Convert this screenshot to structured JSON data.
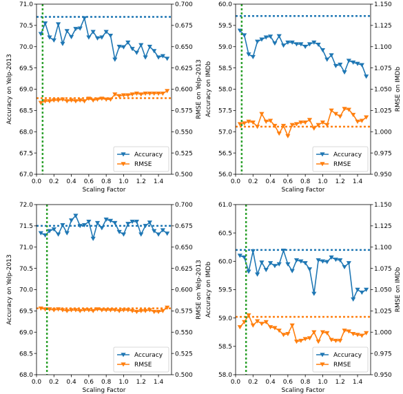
{
  "colors": {
    "accuracy": "#1f77b4",
    "rmse": "#ff7f0e",
    "marker_line": "#2ca02c"
  },
  "chart_data": [
    {
      "type": "line",
      "xlabel": "Scaling Factor",
      "ylabel_left": "Accuracy on Yelp-2013",
      "ylabel_right": "RMSE on Yelp-2013",
      "xlim": [
        0.0,
        1.55
      ],
      "ylim_left": [
        67.0,
        71.0
      ],
      "ylim_right": [
        0.5,
        0.7
      ],
      "xticks": [
        "0.0",
        "0.2",
        "0.4",
        "0.6",
        "0.8",
        "1.0",
        "1.2",
        "1.4"
      ],
      "yticks_left": [
        "67.0",
        "67.5",
        "68.0",
        "68.5",
        "69.0",
        "69.5",
        "70.0",
        "70.5",
        "71.0"
      ],
      "yticks_right": [
        "0.500",
        "0.525",
        "0.550",
        "0.575",
        "0.600",
        "0.625",
        "0.650",
        "0.675",
        "0.700"
      ],
      "legend": [
        "Accuracy",
        "RMSE"
      ],
      "legend_position": "lower right",
      "vertical_line_x": 0.07,
      "accuracy_baseline": 70.7,
      "rmse_baseline": 0.5895,
      "x": [
        0.05,
        0.1,
        0.15,
        0.2,
        0.25,
        0.3,
        0.35,
        0.4,
        0.45,
        0.5,
        0.55,
        0.6,
        0.65,
        0.7,
        0.75,
        0.8,
        0.85,
        0.9,
        0.95,
        1.0,
        1.05,
        1.1,
        1.15,
        1.2,
        1.25,
        1.3,
        1.35,
        1.4,
        1.45,
        1.5
      ],
      "series": [
        {
          "name": "Accuracy",
          "axis": "left",
          "marker": "triangle-down",
          "values": [
            70.3,
            70.55,
            70.22,
            70.15,
            70.53,
            70.07,
            70.37,
            70.23,
            70.42,
            70.43,
            70.67,
            70.22,
            70.35,
            70.2,
            70.22,
            70.35,
            70.26,
            69.7,
            70.0,
            69.99,
            70.1,
            69.95,
            69.86,
            70.04,
            69.75,
            70.0,
            69.9,
            69.75,
            69.78,
            69.72
          ]
        },
        {
          "name": "RMSE",
          "axis": "right",
          "marker": "triangle-down",
          "values": [
            0.584,
            0.586,
            0.586,
            0.587,
            0.587,
            0.588,
            0.586,
            0.587,
            0.586,
            0.587,
            0.586,
            0.589,
            0.587,
            0.588,
            0.589,
            0.588,
            0.588,
            0.594,
            0.592,
            0.593,
            0.593,
            0.594,
            0.595,
            0.594,
            0.595,
            0.595,
            0.595,
            0.595,
            0.595,
            0.598
          ]
        }
      ]
    },
    {
      "type": "line",
      "xlabel": "Scaling Factor",
      "ylabel_left": "Accuracy on IMDb",
      "ylabel_right": "RMSE on IMDb",
      "xlim": [
        0.0,
        1.55
      ],
      "ylim_left": [
        56.0,
        60.0
      ],
      "ylim_right": [
        0.95,
        1.15
      ],
      "xticks": [
        "0.0",
        "0.2",
        "0.4",
        "0.6",
        "0.8",
        "1.0",
        "1.2",
        "1.4"
      ],
      "yticks_left": [
        "56.0",
        "56.5",
        "57.0",
        "57.5",
        "58.0",
        "58.5",
        "59.0",
        "59.5",
        "60.0"
      ],
      "yticks_right": [
        "0.950",
        "0.975",
        "1.000",
        "1.025",
        "1.050",
        "1.075",
        "1.100",
        "1.125",
        "1.150"
      ],
      "legend": [
        "Accuracy",
        "RMSE"
      ],
      "legend_position": "lower right",
      "vertical_line_x": 0.07,
      "accuracy_baseline": 59.72,
      "rmse_baseline": 1.006,
      "x": [
        0.05,
        0.1,
        0.15,
        0.2,
        0.25,
        0.3,
        0.35,
        0.4,
        0.45,
        0.5,
        0.55,
        0.6,
        0.65,
        0.7,
        0.75,
        0.8,
        0.85,
        0.9,
        0.95,
        1.0,
        1.05,
        1.1,
        1.15,
        1.2,
        1.25,
        1.3,
        1.35,
        1.4,
        1.45,
        1.5
      ],
      "series": [
        {
          "name": "Accuracy",
          "axis": "left",
          "marker": "triangle-down",
          "values": [
            59.38,
            59.27,
            58.82,
            58.76,
            59.12,
            59.17,
            59.22,
            59.24,
            59.08,
            59.25,
            59.03,
            59.1,
            59.1,
            59.06,
            59.06,
            59.0,
            59.06,
            59.1,
            59.05,
            58.92,
            58.7,
            58.8,
            58.55,
            58.58,
            58.4,
            58.67,
            58.63,
            58.6,
            58.57,
            58.3
          ]
        },
        {
          "name": "RMSE",
          "axis": "right",
          "marker": "triangle-down",
          "values": [
            1.009,
            1.01,
            1.012,
            1.011,
            1.006,
            1.021,
            1.012,
            1.013,
            1.007,
            0.998,
            1.007,
            0.995,
            1.008,
            1.009,
            1.011,
            1.011,
            1.014,
            1.004,
            1.008,
            1.011,
            1.008,
            1.025,
            1.021,
            1.018,
            1.027,
            1.026,
            1.02,
            1.012,
            1.013,
            1.017
          ]
        }
      ]
    },
    {
      "type": "line",
      "xlabel": "Scaling Factor",
      "ylabel_left": "Accuracy on Yelp-2013",
      "ylabel_right": "RMSE on Yelp-2013",
      "xlim": [
        0.0,
        1.55
      ],
      "ylim_left": [
        68.0,
        72.0
      ],
      "ylim_right": [
        0.5,
        0.7
      ],
      "xticks": [
        "0.0",
        "0.2",
        "0.4",
        "0.6",
        "0.8",
        "1.0",
        "1.2",
        "1.4"
      ],
      "yticks_left": [
        "68.0",
        "68.5",
        "69.0",
        "69.5",
        "70.0",
        "70.5",
        "71.0",
        "71.5",
        "72.0"
      ],
      "yticks_right": [
        "0.500",
        "0.525",
        "0.550",
        "0.575",
        "0.600",
        "0.625",
        "0.650",
        "0.675",
        "0.700"
      ],
      "legend": [
        "Accuracy",
        "RMSE"
      ],
      "legend_position": "lower right",
      "vertical_line_x": 0.12,
      "accuracy_baseline": 71.5,
      "rmse_baseline": 0.578,
      "x": [
        0.05,
        0.1,
        0.15,
        0.2,
        0.25,
        0.3,
        0.35,
        0.4,
        0.45,
        0.5,
        0.55,
        0.6,
        0.65,
        0.7,
        0.75,
        0.8,
        0.85,
        0.9,
        0.95,
        1.0,
        1.05,
        1.1,
        1.15,
        1.2,
        1.25,
        1.3,
        1.35,
        1.4,
        1.45,
        1.5
      ],
      "series": [
        {
          "name": "Accuracy",
          "axis": "left",
          "marker": "triangle-down",
          "values": [
            71.33,
            71.28,
            71.38,
            71.42,
            71.3,
            71.52,
            71.33,
            71.63,
            71.74,
            71.5,
            71.52,
            71.6,
            71.2,
            71.57,
            71.45,
            71.65,
            71.62,
            71.57,
            71.36,
            71.3,
            71.55,
            71.6,
            71.6,
            71.3,
            71.5,
            71.58,
            71.38,
            71.3,
            71.4,
            71.32
          ]
        },
        {
          "name": "RMSE",
          "axis": "right",
          "marker": "triangle-down",
          "values": [
            0.578,
            0.577,
            0.577,
            0.576,
            0.577,
            0.576,
            0.575,
            0.576,
            0.576,
            0.575,
            0.576,
            0.576,
            0.575,
            0.577,
            0.576,
            0.576,
            0.576,
            0.576,
            0.575,
            0.576,
            0.576,
            0.575,
            0.574,
            0.575,
            0.575,
            0.576,
            0.574,
            0.574,
            0.575,
            0.579
          ]
        }
      ]
    },
    {
      "type": "line",
      "xlabel": "Scaling Factor",
      "ylabel_left": "Accuracy on IMDb",
      "ylabel_right": "RMSE on IMDb",
      "xlim": [
        0.0,
        1.55
      ],
      "ylim_left": [
        58.0,
        61.0
      ],
      "ylim_right": [
        0.95,
        1.15
      ],
      "xticks": [
        "0.0",
        "0.2",
        "0.4",
        "0.6",
        "0.8",
        "1.0",
        "1.2",
        "1.4"
      ],
      "yticks_left": [
        "58.0",
        "58.5",
        "59.0",
        "59.5",
        "60.0",
        "60.5",
        "61.0"
      ],
      "yticks_right": [
        "0.950",
        "0.975",
        "1.000",
        "1.025",
        "1.050",
        "1.075",
        "1.100",
        "1.125",
        "1.150"
      ],
      "legend": [
        "Accuracy",
        "RMSE"
      ],
      "legend_position": "lower right",
      "vertical_line_x": 0.12,
      "accuracy_baseline": 60.2,
      "rmse_baseline": 1.018,
      "x": [
        0.05,
        0.1,
        0.15,
        0.2,
        0.25,
        0.3,
        0.35,
        0.4,
        0.45,
        0.5,
        0.55,
        0.6,
        0.65,
        0.7,
        0.75,
        0.8,
        0.85,
        0.9,
        0.95,
        1.0,
        1.05,
        1.1,
        1.15,
        1.2,
        1.25,
        1.3,
        1.35,
        1.4,
        1.45,
        1.5
      ],
      "series": [
        {
          "name": "Accuracy",
          "axis": "left",
          "marker": "triangle-down",
          "values": [
            60.1,
            60.07,
            59.82,
            60.18,
            59.77,
            59.98,
            59.85,
            59.97,
            59.92,
            59.95,
            60.19,
            59.95,
            59.83,
            60.02,
            60.0,
            59.97,
            59.86,
            59.43,
            60.02,
            60.0,
            59.99,
            60.07,
            60.03,
            60.02,
            59.9,
            59.97,
            59.33,
            59.5,
            59.45,
            59.5
          ]
        },
        {
          "name": "RMSE",
          "axis": "right",
          "marker": "triangle-down",
          "values": [
            1.006,
            1.012,
            1.02,
            1.008,
            1.013,
            1.01,
            1.012,
            1.006,
            1.005,
            1.002,
            0.997,
            0.998,
            1.008,
            0.989,
            0.99,
            0.992,
            0.993,
            1.0,
            0.989,
            1.0,
            0.999,
            0.991,
            0.99,
            0.99,
            1.002,
            1.001,
            0.998,
            0.997,
            0.996,
            0.999
          ]
        }
      ]
    }
  ]
}
